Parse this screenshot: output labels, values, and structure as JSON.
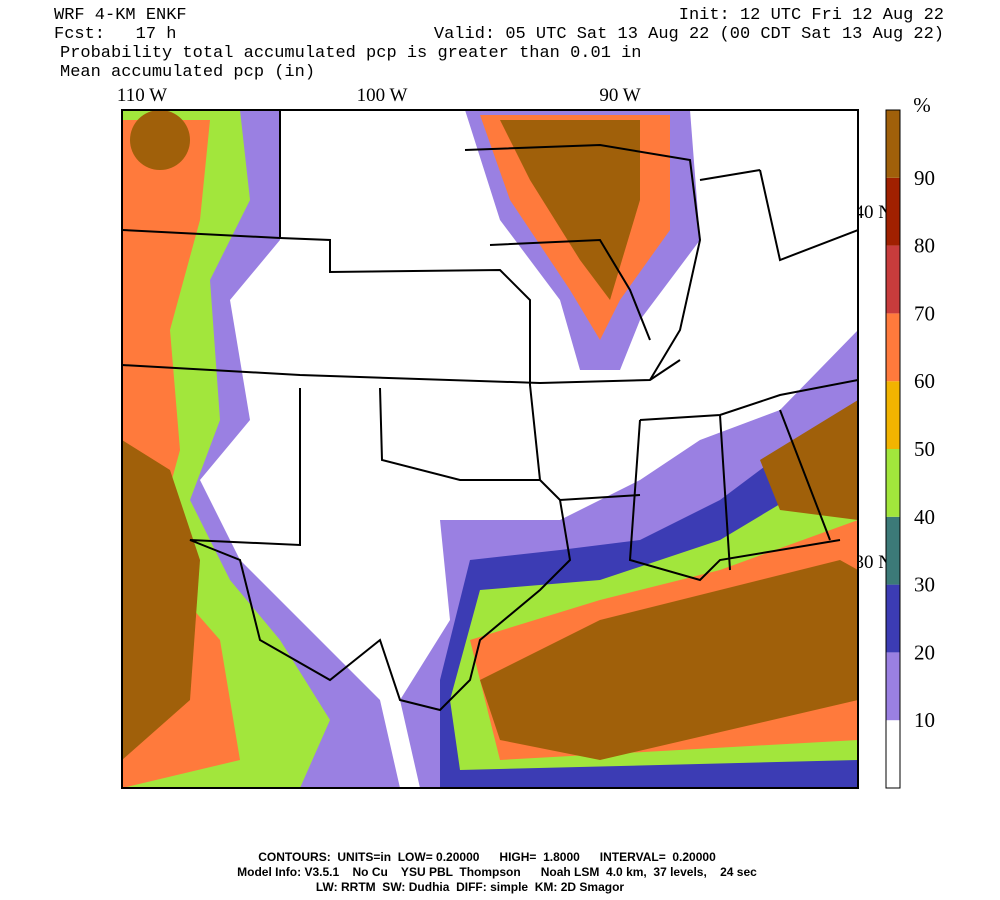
{
  "header": {
    "model": "WRF 4-KM ENKF",
    "init": "Init: 12 UTC Fri 12 Aug 22",
    "forecast": "Fcst:   17 h",
    "valid": "Valid: 05 UTC Sat 13 Aug 22 (00 CDT Sat 13 Aug 22)",
    "field_fill": "Probability total accumulated pcp is greater than 0.01 in",
    "field_contour": "Mean accumulated pcp (in)"
  },
  "map": {
    "longitude_labels": [
      "110 W",
      "100 W",
      "90 W"
    ],
    "latitude_labels": [
      "40 N",
      "30 N"
    ]
  },
  "colorbar": {
    "unit": "%",
    "labels": [
      "10",
      "20",
      "30",
      "40",
      "50",
      "60",
      "70",
      "80",
      "90"
    ],
    "colors": [
      "#ffffff",
      "#9a80e2",
      "#3c3cb4",
      "#3c7a78",
      "#a2e63c",
      "#f2b400",
      "#ff7a3c",
      "#c83c3c",
      "#a02000",
      "#a0600a"
    ]
  },
  "footer": {
    "contours": "CONTOURS:  UNITS=in  LOW= 0.20000      HIGH=  1.8000      INTERVAL=  0.20000",
    "model_info": "Model Info: V3.5.1    No Cu    YSU PBL  Thompson      Noah LSM  4.0 km,  37 levels,    24 sec",
    "physics": "LW: RRTM  SW: Dudhia  DIFF: simple  KM: 2D Smagor"
  }
}
